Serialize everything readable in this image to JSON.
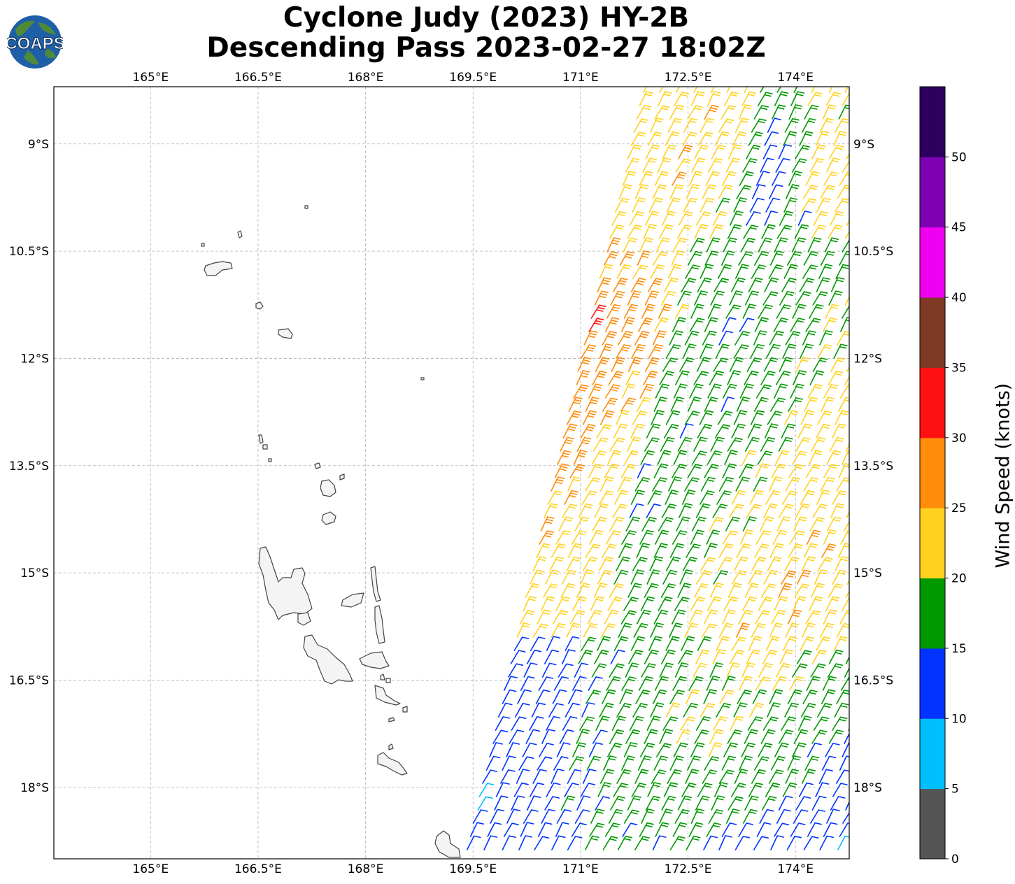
{
  "title": {
    "line1": "Cyclone Judy (2023) HY-2B",
    "line2": "Descending Pass 2023-02-27 18:02Z"
  },
  "logo": {
    "text": "COAPS",
    "ocean_color": "#1f5fa8",
    "land_color": "#4f8a3a"
  },
  "map": {
    "lon_ticks": [
      {
        "value": 165.0,
        "label": "165°E"
      },
      {
        "value": 166.5,
        "label": "166.5°E"
      },
      {
        "value": 168.0,
        "label": "168°E"
      },
      {
        "value": 169.5,
        "label": "169.5°E"
      },
      {
        "value": 171.0,
        "label": "171°E"
      },
      {
        "value": 172.5,
        "label": "172.5°E"
      },
      {
        "value": 174.0,
        "label": "174°E"
      }
    ],
    "lat_ticks": [
      {
        "value": -9.0,
        "label": "9°S"
      },
      {
        "value": -10.5,
        "label": "10.5°S"
      },
      {
        "value": -12.0,
        "label": "12°S"
      },
      {
        "value": -13.5,
        "label": "13.5°S"
      },
      {
        "value": -15.0,
        "label": "15°S"
      },
      {
        "value": -16.5,
        "label": "16.5°S"
      },
      {
        "value": -18.0,
        "label": "18°S"
      }
    ],
    "extent": {
      "lon_min": 163.65,
      "lon_max": 174.75,
      "lat_min": -19.0,
      "lat_max": -8.2
    },
    "coastline_color": "#444444",
    "land_fill": "#f4f4f4",
    "gridline_color": "#b0b0b0"
  },
  "colorbar": {
    "label": "Wind Speed (knots)",
    "bins": [
      {
        "min": 0,
        "max": 5,
        "color": "#555555"
      },
      {
        "min": 5,
        "max": 10,
        "color": "#00bfff"
      },
      {
        "min": 10,
        "max": 15,
        "color": "#0033ff"
      },
      {
        "min": 15,
        "max": 20,
        "color": "#009900"
      },
      {
        "min": 20,
        "max": 25,
        "color": "#ffd21f"
      },
      {
        "min": 25,
        "max": 30,
        "color": "#ff8c0a"
      },
      {
        "min": 30,
        "max": 35,
        "color": "#ff1111"
      },
      {
        "min": 35,
        "max": 40,
        "color": "#7f3a26"
      },
      {
        "min": 40,
        "max": 45,
        "color": "#f000f0"
      },
      {
        "min": 45,
        "max": 50,
        "color": "#7d00b3"
      },
      {
        "min": 50,
        "max": 55,
        "color": "#2d005f"
      }
    ],
    "tick_labels": [
      "0",
      "5",
      "10",
      "15",
      "20",
      "25",
      "30",
      "35",
      "40",
      "45",
      "50"
    ]
  },
  "swath": {
    "description_type": "wind barbs",
    "left_edge_lon_at_top": 171.9,
    "left_edge_lon_at_bottom": 169.4,
    "wind_direction": "southeasterly"
  }
}
